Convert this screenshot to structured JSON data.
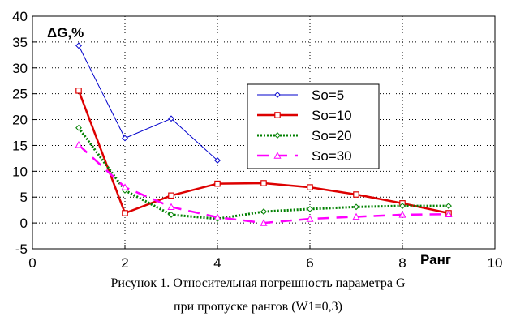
{
  "chart_data": {
    "type": "line",
    "ylabel": "ΔG,%",
    "xlabel": "Ранг",
    "xlim": [
      0,
      10
    ],
    "ylim": [
      -5,
      40
    ],
    "x_ticks": [
      0,
      2,
      4,
      6,
      8,
      10
    ],
    "y_ticks": [
      -5,
      0,
      5,
      10,
      15,
      20,
      25,
      30,
      35,
      40
    ],
    "grid": "dotted-vertical-and-horizontal",
    "legend_position": "center-right",
    "series": [
      {
        "name": "So=5",
        "color": "#0000cc",
        "style": "solid-thin",
        "marker": "diamond",
        "x": [
          1,
          2,
          3,
          4
        ],
        "y": [
          34.3,
          16.4,
          20.2,
          12.1
        ]
      },
      {
        "name": "So=10",
        "color": "#dd0000",
        "style": "solid-thick",
        "marker": "square",
        "x": [
          1,
          2,
          3,
          4,
          5,
          6,
          7,
          8,
          9
        ],
        "y": [
          25.6,
          1.9,
          5.3,
          7.6,
          7.7,
          6.9,
          5.5,
          3.8,
          1.9
        ]
      },
      {
        "name": "So=20",
        "color": "#008000",
        "style": "dotted",
        "marker": "diamond",
        "x": [
          1,
          2,
          3,
          4,
          5,
          6,
          7,
          8,
          9
        ],
        "y": [
          18.4,
          6.3,
          1.6,
          0.8,
          2.2,
          2.7,
          3.1,
          3.3,
          3.3
        ]
      },
      {
        "name": "So=30",
        "color": "#ff00ff",
        "style": "dashed",
        "marker": "triangle",
        "x": [
          1,
          2,
          3,
          4,
          5,
          6,
          7,
          8,
          9
        ],
        "y": [
          15.1,
          6.9,
          3.1,
          1.1,
          0.0,
          0.8,
          1.2,
          1.6,
          1.7
        ]
      }
    ]
  },
  "caption": {
    "line1": "Рисунок 1. Относительная погрешность параметра G",
    "line2": "при пропуске рангов (W1=0,3)"
  }
}
